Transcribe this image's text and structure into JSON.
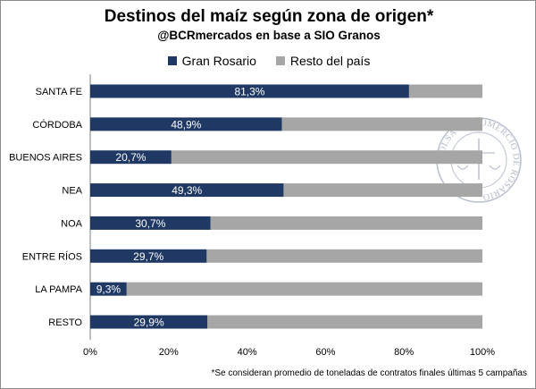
{
  "chart_data": {
    "type": "bar",
    "orientation": "horizontal",
    "stacked": true,
    "title": "Destinos del maíz según zona de origen*",
    "subtitle": "@BCRmercados en base a SIO Granos",
    "categories": [
      "SANTA FE",
      "CÓRDOBA",
      "BUENOS AIRES",
      "NEA",
      "NOA",
      "ENTRE RÍOS",
      "LA PAMPA",
      "RESTO"
    ],
    "series": [
      {
        "name": "Gran Rosario",
        "color": "#1f3864",
        "values": [
          81.3,
          48.9,
          20.7,
          49.3,
          30.7,
          29.7,
          9.3,
          29.9
        ],
        "labels": [
          "81,3%",
          "48,9%",
          "20,7%",
          "49,3%",
          "30,7%",
          "29,7%",
          "9,3%",
          "29,9%"
        ]
      },
      {
        "name": "Resto del país",
        "color": "#a6a6a6",
        "values": [
          18.7,
          51.1,
          79.3,
          50.7,
          69.3,
          70.3,
          90.7,
          70.1
        ]
      }
    ],
    "xlim": [
      0,
      100
    ],
    "xticks": [
      "0%",
      "20%",
      "40%",
      "60%",
      "80%",
      "100%"
    ],
    "grid": false,
    "legend_position": "top",
    "footnote": "*Se consideran promedio de toneladas de contratos finales últimas 5 campañas",
    "watermark_text": "BOLSA DE COMERCIO DE ROSARIO"
  }
}
